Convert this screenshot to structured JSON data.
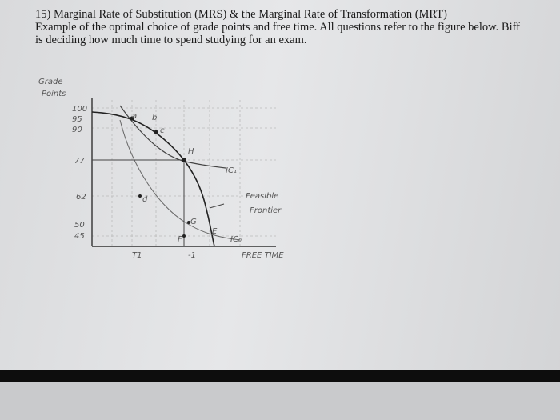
{
  "header": {
    "lines": [
      "15) Marginal Rate of Substitution (MRS) & the Marginal Rate of Transformation (MRT)",
      "Example of the optimal choice of grade points and free time. All questions refer to the figure below. Biff",
      "is deciding how much time to spend studying for an exam."
    ]
  },
  "figure": {
    "y_axis_label": [
      "Grade",
      "Points"
    ],
    "y_ticks": [
      "100",
      "95",
      "90",
      "77",
      "62",
      "50",
      "45"
    ],
    "points": [
      "a",
      "b",
      "c",
      "H",
      "d",
      "G",
      "E",
      "F"
    ],
    "ic_high": "IC₁",
    "ic_low": "IC₀",
    "frontier_label": [
      "Feasible",
      "Frontier"
    ],
    "x_axis_label": "FREE TIME",
    "x_marks": [
      "T1",
      "-1"
    ]
  }
}
